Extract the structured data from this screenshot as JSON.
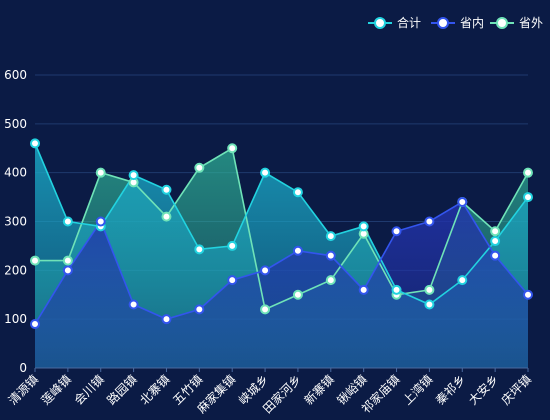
{
  "chart_data": {
    "type": "area",
    "categories": [
      "清源镇",
      "莲峰镇",
      "会川镇",
      "路园镇",
      "北寨镇",
      "五竹镇",
      "麻家集镇",
      "峡城乡",
      "田家河乡",
      "新寨镇",
      "锹峪镇",
      "祁家庙镇",
      "上湾镇",
      "秦祁乡",
      "大安乡",
      "庆坪镇"
    ],
    "series": [
      {
        "name": "合计",
        "color": "#22d3e0",
        "fill_top": "#1aa6c4",
        "values": [
          460,
          300,
          290,
          395,
          365,
          243,
          250,
          400,
          360,
          270,
          290,
          160,
          130,
          180,
          260,
          350
        ]
      },
      {
        "name": "省内",
        "color": "#3355ee",
        "fill_top": "#2233aa",
        "values": [
          90,
          200,
          300,
          130,
          100,
          120,
          180,
          200,
          240,
          230,
          160,
          280,
          300,
          340,
          230,
          150
        ]
      },
      {
        "name": "省外",
        "color": "#6fe3b8",
        "fill_top": "#2fb89a",
        "values": [
          220,
          220,
          400,
          380,
          310,
          410,
          450,
          120,
          150,
          180,
          275,
          150,
          160,
          340,
          280,
          400
        ]
      }
    ],
    "ylim": [
      0,
      600
    ],
    "yticks": [
      0,
      100,
      200,
      300,
      400,
      500,
      600
    ],
    "legend_position": "top-right",
    "grid": true
  }
}
